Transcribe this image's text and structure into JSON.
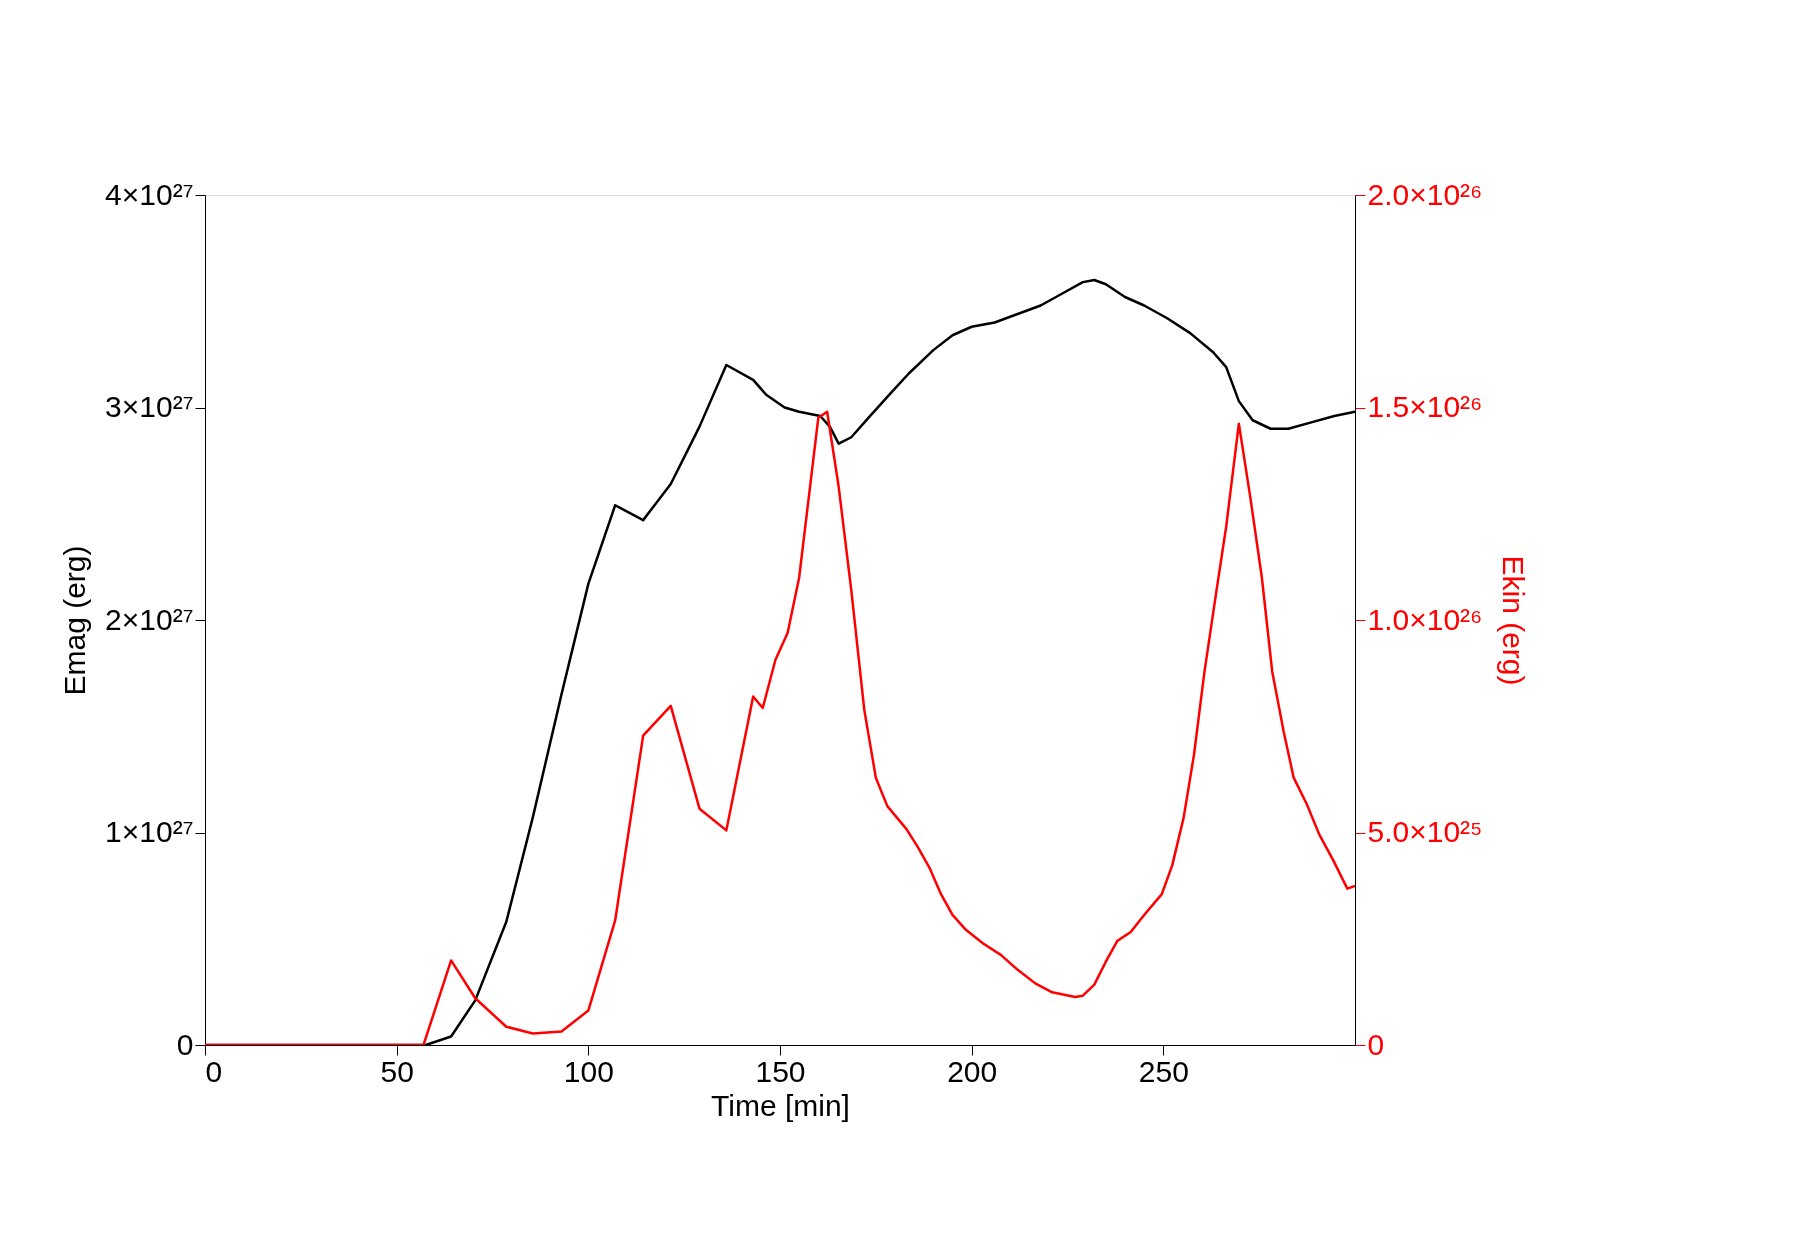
{
  "chart_data": {
    "type": "line",
    "xlabel": "Time [min]",
    "ylabel": "Emag (erg)",
    "y2label": "Ekin (erg)",
    "xlim": [
      0,
      300
    ],
    "xticks": [
      0,
      50,
      100,
      150,
      200,
      250
    ],
    "ylim": [
      0,
      4e+27
    ],
    "yticks": [
      {
        "value": 0,
        "label": "0"
      },
      {
        "value": 1e+27,
        "label": "1×10²⁷"
      },
      {
        "value": 2e+27,
        "label": "2×10²⁷"
      },
      {
        "value": 3e+27,
        "label": "3×10²⁷"
      },
      {
        "value": 4e+27,
        "label": "4×10²⁷"
      }
    ],
    "y2lim": [
      0,
      2e+26
    ],
    "y2ticks": [
      {
        "value": 0,
        "label": "0"
      },
      {
        "value": 5e+25,
        "label": "5.0×10²⁵"
      },
      {
        "value": 1e+26,
        "label": "1.0×10²⁶"
      },
      {
        "value": 1.5e+26,
        "label": "1.5×10²⁶"
      },
      {
        "value": 2e+26,
        "label": "2.0×10²⁶"
      }
    ],
    "grid": false,
    "line_style": "solid",
    "marker": "none",
    "series": [
      {
        "color": "#000000",
        "x": [
          0,
          57.6,
          64.2,
          70.5,
          78.6,
          85.5,
          93,
          100,
          107,
          114.3,
          121.5,
          129,
          136,
          143,
          146.4,
          151.2,
          155,
          160.5,
          163,
          165.3,
          168.6,
          173,
          179,
          183.6,
          190,
          195,
          200,
          206,
          212,
          218,
          224,
          229,
          232,
          235,
          240,
          245,
          251,
          257,
          263,
          266.4,
          269.7,
          273.3,
          278,
          282.6,
          288.6,
          294.6,
          300
        ],
        "values": [
          0,
          0,
          4e+25,
          2.1e+26,
          5.8e+26,
          1.07e+27,
          1.65e+27,
          2.17e+27,
          2.54e+27,
          2.47e+27,
          2.64e+27,
          2.91e+27,
          3.2e+27,
          3.13e+27,
          3.06e+27,
          3e+27,
          2.98e+27,
          2.96e+27,
          2.91e+27,
          2.83e+27,
          2.86e+27,
          2.95e+27,
          3.07e+27,
          3.16e+27,
          3.27e+27,
          3.34e+27,
          3.38e+27,
          3.4e+27,
          3.44e+27,
          3.48e+27,
          3.54e+27,
          3.59e+27,
          3.6e+27,
          3.58e+27,
          3.52e+27,
          3.48e+27,
          3.42e+27,
          3.35e+27,
          3.26e+27,
          3.19e+27,
          3.03e+27,
          2.94e+27,
          2.9e+27,
          2.9e+27,
          2.93e+27,
          2.96e+27,
          2.98e+27
        ]
      },
      {
        "color": "#ff0000",
        "axis": "y2",
        "x": [
          0,
          57,
          64.2,
          70.5,
          78.6,
          85.5,
          93,
          100,
          107,
          114.3,
          121.5,
          129,
          136,
          143,
          145.5,
          148.8,
          152,
          155,
          160,
          162.3,
          165.3,
          168.6,
          172,
          175,
          178,
          183,
          186,
          189,
          192,
          195,
          198.5,
          203,
          207.6,
          212,
          216.6,
          221,
          227,
          229,
          232,
          235,
          238,
          241.5,
          245,
          249.6,
          252.3,
          255.3,
          258,
          260.7,
          263.7,
          266.4,
          269.7,
          272.7,
          275.7,
          278.4,
          281.4,
          284,
          287.4,
          290.7,
          294.3,
          298,
          300
        ],
        "values": [
          0,
          0,
          1.99e+25,
          1.1e+25,
          4.3e+24,
          2.7e+24,
          3.2e+24,
          8.1e+24,
          2.93e+25,
          7.28e+25,
          7.98e+25,
          5.56e+25,
          5.05e+25,
          8.2e+25,
          7.93e+25,
          9.06e+25,
          9.7e+25,
          1.1e+26,
          1.476e+26,
          1.49e+26,
          1.314e+26,
          1.07e+26,
          7.88e+25,
          6.29e+25,
          5.62e+25,
          5.08e+25,
          4.65e+25,
          4.17e+25,
          3.55e+25,
          3.06e+25,
          2.71e+25,
          2.39e+25,
          2.12e+25,
          1.77e+25,
          1.45e+25,
          1.24e+25,
          1.13e+25,
          1.16e+25,
          1.42e+25,
          1.96e+25,
          2.45e+25,
          2.66e+25,
          3.06e+25,
          3.55e+25,
          4.22e+25,
          5.35e+25,
          6.83e+25,
          8.76e+25,
          1.059e+26,
          1.22e+26,
          1.462e+26,
          1.288e+26,
          1.1e+26,
          8.79e+25,
          7.37e+25,
          6.29e+25,
          5.67e+25,
          4.95e+25,
          4.35e+25,
          3.68e+25,
          3.74e+25
        ]
      }
    ]
  }
}
